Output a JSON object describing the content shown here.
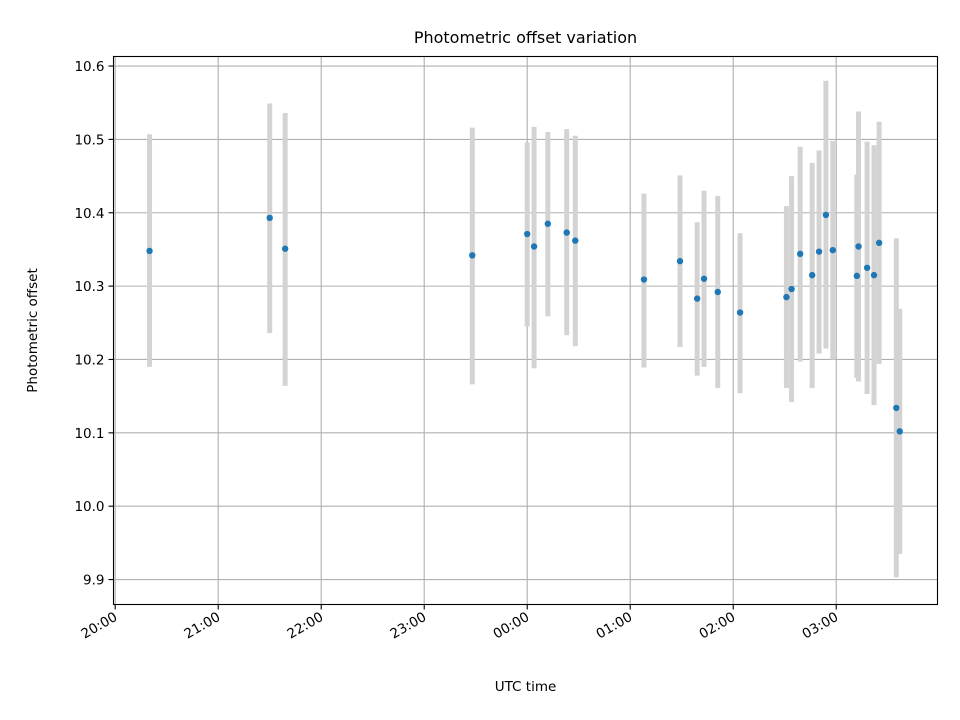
{
  "chart_data": {
    "type": "scatter",
    "title": "Photometric offset variation",
    "xlabel": "UTC time",
    "ylabel": "Photometric offset",
    "x_axis": {
      "start": "2023-01-01T20:00",
      "xlim": [
        "2023-01-01T19:59",
        "2023-01-02T03:59"
      ],
      "ticks": [
        {
          "t": "2023-01-01T20:00",
          "label": "20:00"
        },
        {
          "t": "2023-01-01T21:00",
          "label": "21:00"
        },
        {
          "t": "2023-01-01T22:00",
          "label": "22:00"
        },
        {
          "t": "2023-01-01T23:00",
          "label": "23:00"
        },
        {
          "t": "2023-01-02T00:00",
          "label": "00:00"
        },
        {
          "t": "2023-01-02T01:00",
          "label": "01:00"
        },
        {
          "t": "2023-01-02T02:00",
          "label": "02:00"
        },
        {
          "t": "2023-01-02T03:00",
          "label": "03:00"
        }
      ]
    },
    "y_axis": {
      "ylim": [
        9.866,
        10.613
      ],
      "ticks": [
        {
          "v": 9.9,
          "label": "9.9"
        },
        {
          "v": 10.0,
          "label": "10.0"
        },
        {
          "v": 10.1,
          "label": "10.1"
        },
        {
          "v": 10.2,
          "label": "10.2"
        },
        {
          "v": 10.3,
          "label": "10.3"
        },
        {
          "v": 10.4,
          "label": "10.4"
        },
        {
          "v": 10.5,
          "label": "10.5"
        },
        {
          "v": 10.6,
          "label": "10.6"
        }
      ]
    },
    "grid": true,
    "marker_color": "#1f77b4",
    "errorbar_color": "#d3d3d3",
    "points": [
      {
        "t": "2023-01-01T20:20",
        "y": 10.348,
        "lo": 10.19,
        "hi": 10.507
      },
      {
        "t": "2023-01-01T21:30",
        "y": 10.393,
        "lo": 10.236,
        "hi": 10.549
      },
      {
        "t": "2023-01-01T21:39",
        "y": 10.351,
        "lo": 10.164,
        "hi": 10.536
      },
      {
        "t": "2023-01-01T23:28",
        "y": 10.342,
        "lo": 10.166,
        "hi": 10.516
      },
      {
        "t": "2023-01-02T00:00",
        "y": 10.371,
        "lo": 10.245,
        "hi": 10.496
      },
      {
        "t": "2023-01-02T00:04",
        "y": 10.354,
        "lo": 10.188,
        "hi": 10.517
      },
      {
        "t": "2023-01-02T00:12",
        "y": 10.385,
        "lo": 10.259,
        "hi": 10.51
      },
      {
        "t": "2023-01-02T00:23",
        "y": 10.373,
        "lo": 10.233,
        "hi": 10.514
      },
      {
        "t": "2023-01-02T00:28",
        "y": 10.362,
        "lo": 10.218,
        "hi": 10.505
      },
      {
        "t": "2023-01-02T01:08",
        "y": 10.309,
        "lo": 10.189,
        "hi": 10.426
      },
      {
        "t": "2023-01-02T01:29",
        "y": 10.334,
        "lo": 10.217,
        "hi": 10.451
      },
      {
        "t": "2023-01-02T01:39",
        "y": 10.283,
        "lo": 10.178,
        "hi": 10.387
      },
      {
        "t": "2023-01-02T01:43",
        "y": 10.31,
        "lo": 10.19,
        "hi": 10.43
      },
      {
        "t": "2023-01-02T01:51",
        "y": 10.292,
        "lo": 10.161,
        "hi": 10.423
      },
      {
        "t": "2023-01-02T02:04",
        "y": 10.264,
        "lo": 10.154,
        "hi": 10.372
      },
      {
        "t": "2023-01-02T02:31",
        "y": 10.285,
        "lo": 10.161,
        "hi": 10.409
      },
      {
        "t": "2023-01-02T02:34",
        "y": 10.296,
        "lo": 10.142,
        "hi": 10.45
      },
      {
        "t": "2023-01-02T02:39",
        "y": 10.344,
        "lo": 10.197,
        "hi": 10.49
      },
      {
        "t": "2023-01-02T02:46",
        "y": 10.315,
        "lo": 10.161,
        "hi": 10.468
      },
      {
        "t": "2023-01-02T02:50",
        "y": 10.347,
        "lo": 10.208,
        "hi": 10.485
      },
      {
        "t": "2023-01-02T02:54",
        "y": 10.397,
        "lo": 10.215,
        "hi": 10.58
      },
      {
        "t": "2023-01-02T02:58",
        "y": 10.349,
        "lo": 10.2,
        "hi": 10.498
      },
      {
        "t": "2023-01-02T03:12",
        "y": 10.314,
        "lo": 10.175,
        "hi": 10.452
      },
      {
        "t": "2023-01-02T03:13",
        "y": 10.354,
        "lo": 10.17,
        "hi": 10.538
      },
      {
        "t": "2023-01-02T03:18",
        "y": 10.325,
        "lo": 10.153,
        "hi": 10.497
      },
      {
        "t": "2023-01-02T03:22",
        "y": 10.315,
        "lo": 10.138,
        "hi": 10.492
      },
      {
        "t": "2023-01-02T03:25",
        "y": 10.359,
        "lo": 10.194,
        "hi": 10.524
      },
      {
        "t": "2023-01-02T03:35",
        "y": 10.134,
        "lo": 9.903,
        "hi": 10.365
      },
      {
        "t": "2023-01-02T03:37",
        "y": 10.102,
        "lo": 9.935,
        "hi": 10.269
      }
    ]
  }
}
